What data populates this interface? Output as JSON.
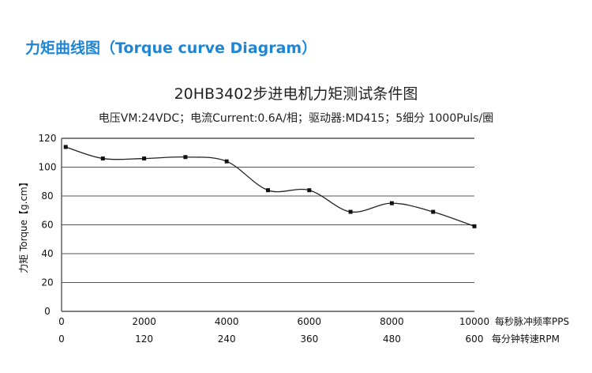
{
  "header": {
    "title": "力矩曲线图（Torque curve Diagram）"
  },
  "chart_data": {
    "type": "line",
    "title": "20HB3402步进电机力矩测试条件图",
    "subtitle": "电压VM:24VDC；电流Current:0.6A/相；驱动器:MD415；5细分 1000Puls/圈",
    "ylabel": "力矩 Torque【g.cm】",
    "xlabel": "每秒脉冲频率PPS",
    "x2label": "每分钟转速RPM",
    "xlim": [
      0,
      10000
    ],
    "ylim": [
      0,
      120
    ],
    "xticks": [
      0,
      2000,
      4000,
      6000,
      8000,
      10000
    ],
    "xticks_labels": [
      "0",
      "2000",
      "4000",
      "6000",
      "8000",
      "10000"
    ],
    "x2ticks_labels": [
      "0",
      "120",
      "240",
      "360",
      "480",
      "600"
    ],
    "yticks": [
      0,
      20,
      40,
      60,
      80,
      100,
      120
    ],
    "yticks_labels": [
      "0",
      "20",
      "40",
      "60",
      "80",
      "100",
      "120"
    ],
    "grid": true,
    "series": [
      {
        "x": [
          100,
          1000,
          2000,
          3000,
          4000,
          5000,
          6000,
          7000,
          8000,
          9000,
          10000
        ],
        "values": [
          114,
          106,
          106,
          107,
          104,
          84,
          84,
          69,
          75,
          69,
          59
        ]
      }
    ],
    "colors": {
      "line": "#222222",
      "grid": "#555555",
      "header": "#1f86d6"
    }
  }
}
